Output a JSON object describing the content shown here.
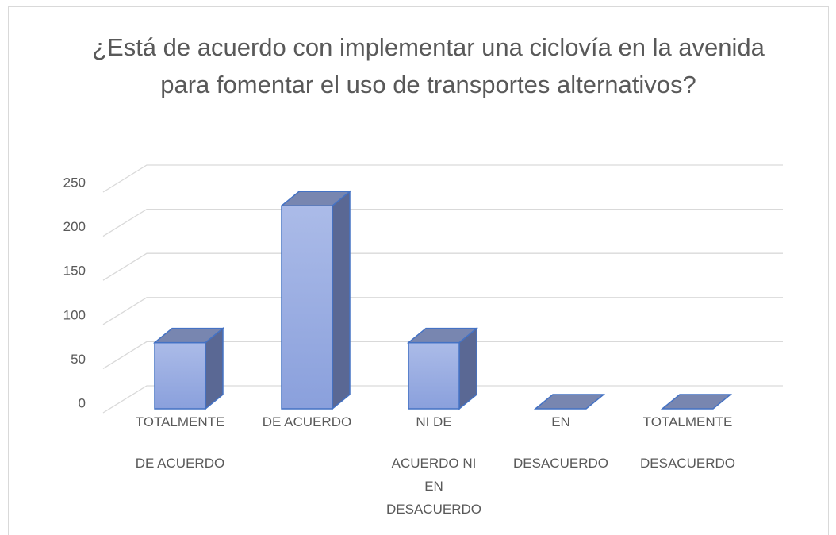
{
  "chart_data": {
    "type": "bar3d",
    "title": "¿Está de acuerdo con implementar una ciclovía en la avenida para fomentar el uso de transportes alternativos?",
    "categories": [
      "TOTALMENTE DE ACUERDO",
      "DE ACUERDO",
      "NI DE ACUERDO NI EN DESACUERDO",
      "EN DESACUERDO",
      "TOTALMENTE DESACUERDO"
    ],
    "values": [
      75,
      230,
      75,
      0,
      0
    ],
    "color": "#8fa3e0",
    "ylim": [
      0,
      250
    ],
    "yticks": [
      0,
      50,
      100,
      150,
      200,
      250
    ],
    "grid": true
  }
}
